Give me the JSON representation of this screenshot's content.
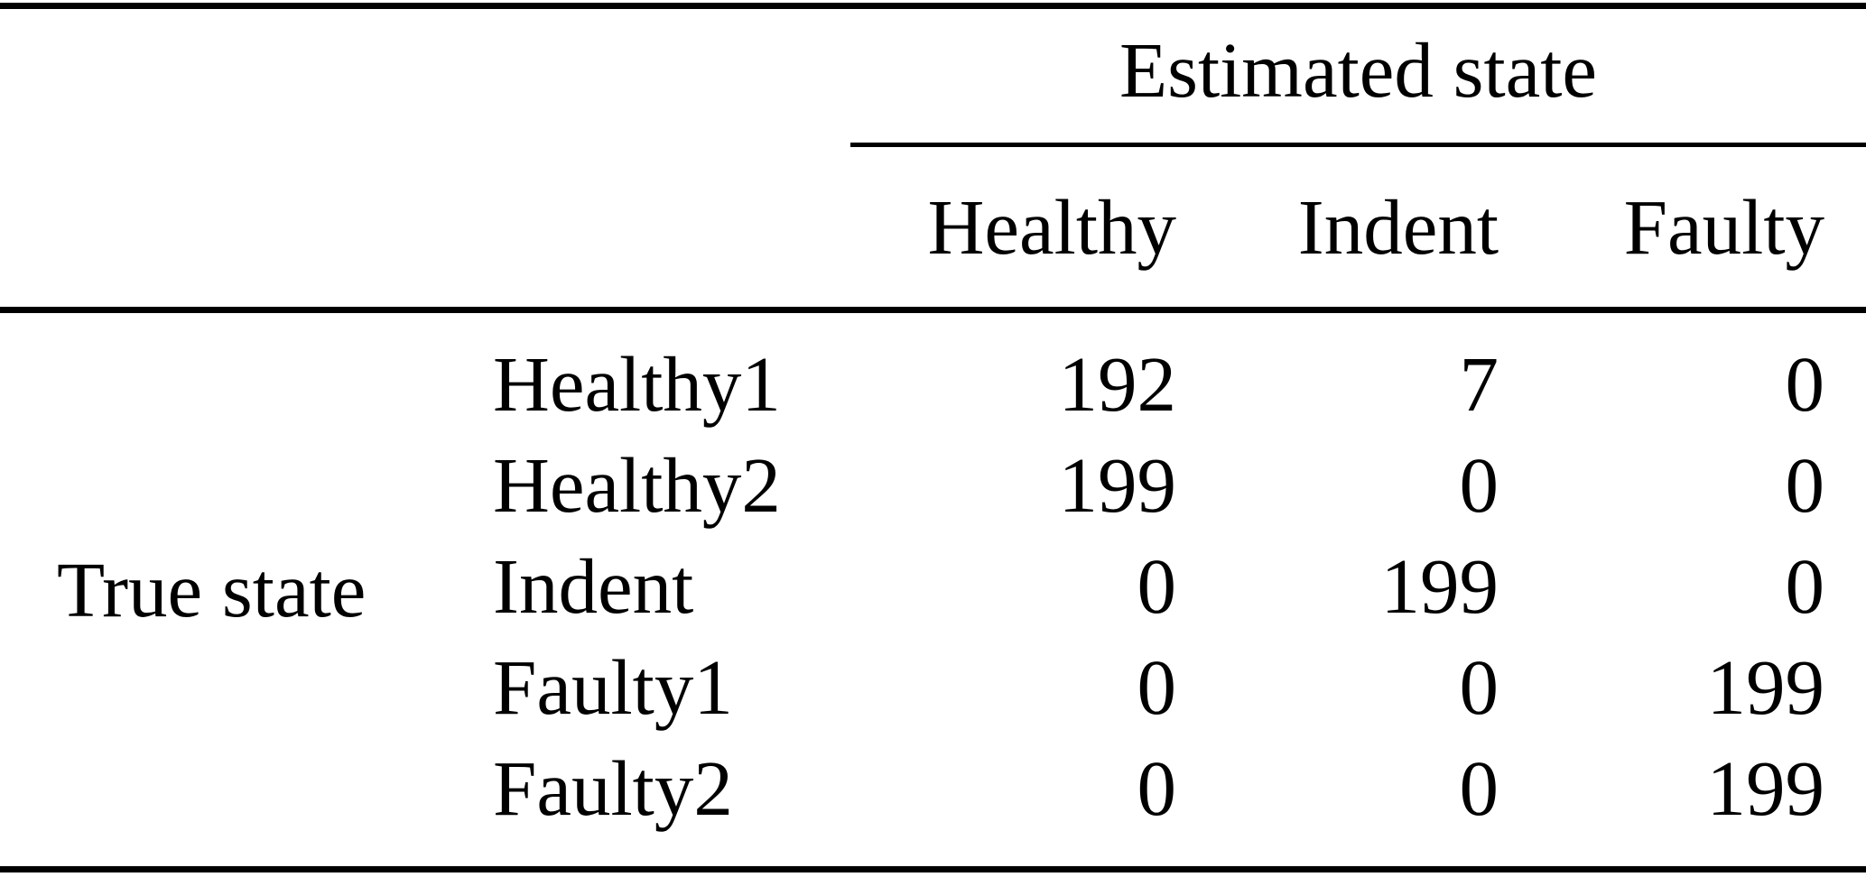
{
  "chart_data": {
    "type": "table",
    "column_group_label": "Estimated state",
    "row_group_label": "True state",
    "columns": [
      "Healthy",
      "Indent",
      "Faulty"
    ],
    "rows": [
      {
        "label": "Healthy1",
        "values": [
          192,
          7,
          0
        ]
      },
      {
        "label": "Healthy2",
        "values": [
          199,
          0,
          0
        ]
      },
      {
        "label": "Indent",
        "values": [
          0,
          199,
          0
        ]
      },
      {
        "label": "Faulty1",
        "values": [
          0,
          0,
          199
        ]
      },
      {
        "label": "Faulty2",
        "values": [
          0,
          0,
          199
        ]
      }
    ],
    "layout": {
      "rules": [
        "top",
        "partial-under-column-group",
        "full-under-headers",
        "bottom"
      ],
      "numeric_alignment": "right",
      "row_label_alignment": "left"
    }
  },
  "colors": {
    "background": "#ffffff",
    "text": "#000000",
    "rule": "#000000"
  }
}
